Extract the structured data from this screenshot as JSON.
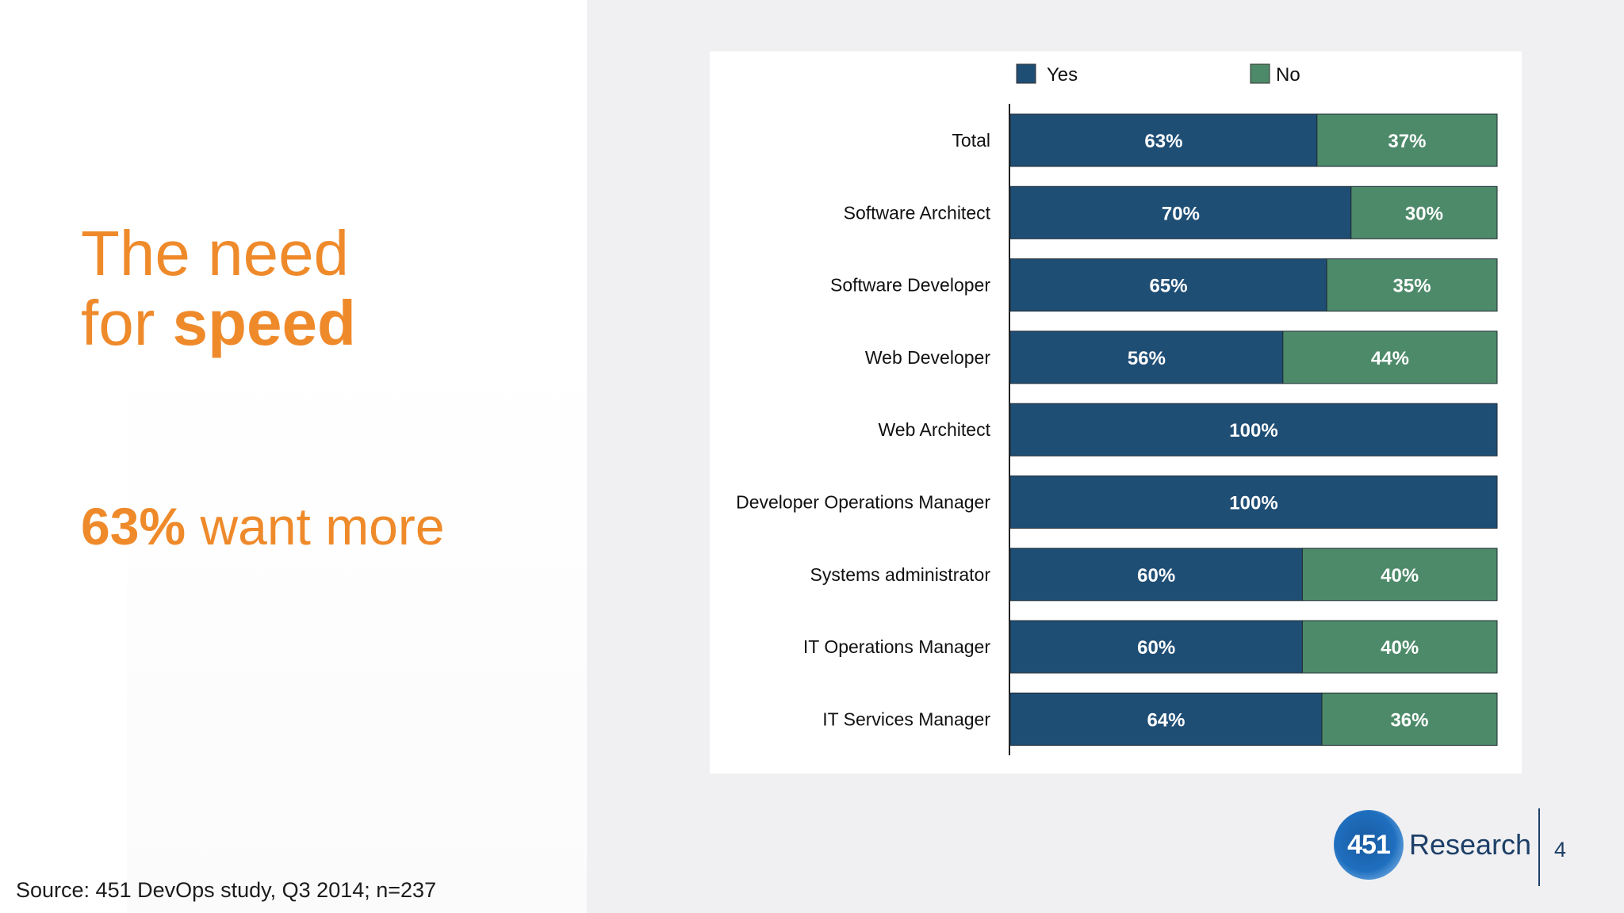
{
  "slide": {
    "headline_line1": "The need",
    "headline_line2_prefix": "for ",
    "headline_line2_bold": "speed",
    "stat_value": "63%",
    "stat_text": " want more",
    "source": "Source: 451 DevOps study, Q3 2014; n=237",
    "logo_number": "451",
    "logo_text": "Research",
    "page_number": "4"
  },
  "colors": {
    "accent_orange": "#ef8a2b",
    "yes": "#1f4e75",
    "no": "#4d8a69",
    "brand_blue": "#1d3f68"
  },
  "chart_data": {
    "type": "bar",
    "orientation": "horizontal",
    "stacked": true,
    "categories": [
      "Total",
      "Software Architect",
      "Software Developer",
      "Web Developer",
      "Web Architect",
      "Developer Operations Manager",
      "Systems administrator",
      "IT Operations Manager",
      "IT Services Manager"
    ],
    "series": [
      {
        "name": "Yes",
        "color": "#1f4e75",
        "values": [
          63,
          70,
          65,
          56,
          100,
          100,
          60,
          60,
          64
        ]
      },
      {
        "name": "No",
        "color": "#4d8a69",
        "values": [
          37,
          30,
          35,
          44,
          0,
          0,
          40,
          40,
          36
        ]
      }
    ],
    "value_suffix": "%",
    "xlim": [
      0,
      100
    ],
    "legend": "top",
    "grid": false
  }
}
